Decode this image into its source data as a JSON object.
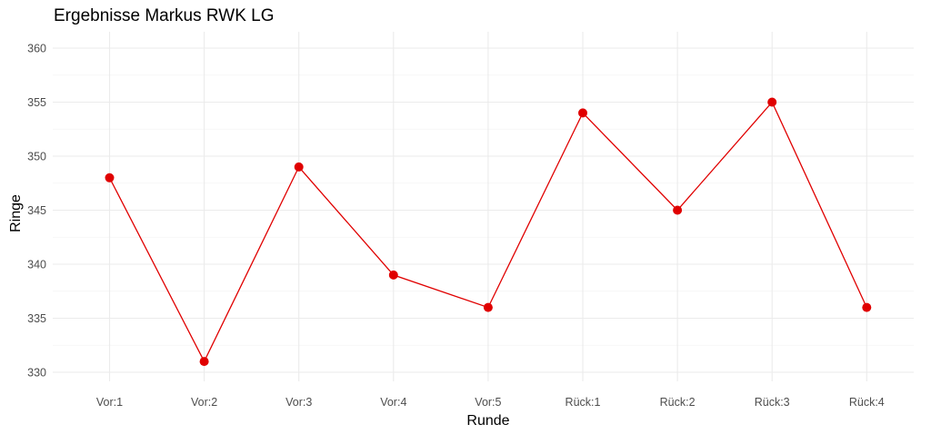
{
  "chart_data": {
    "type": "line",
    "title": "Ergebnisse Markus RWK LG",
    "xlabel": "Runde",
    "ylabel": "Ringe",
    "categories": [
      "Vor:1",
      "Vor:2",
      "Vor:3",
      "Vor:4",
      "Vor:5",
      "Rück:1",
      "Rück:2",
      "Rück:3",
      "Rück:4"
    ],
    "series": [
      {
        "values": [
          348,
          331,
          349,
          339,
          336,
          354,
          345,
          355,
          336
        ]
      }
    ],
    "ylim": [
      330,
      360
    ],
    "yticks": [
      330,
      335,
      340,
      345,
      350,
      355,
      360
    ],
    "grid": true,
    "colors": {
      "line": "#e00000",
      "point": "#e00000",
      "grid": "#ebebeb",
      "background": "#ffffff"
    }
  }
}
